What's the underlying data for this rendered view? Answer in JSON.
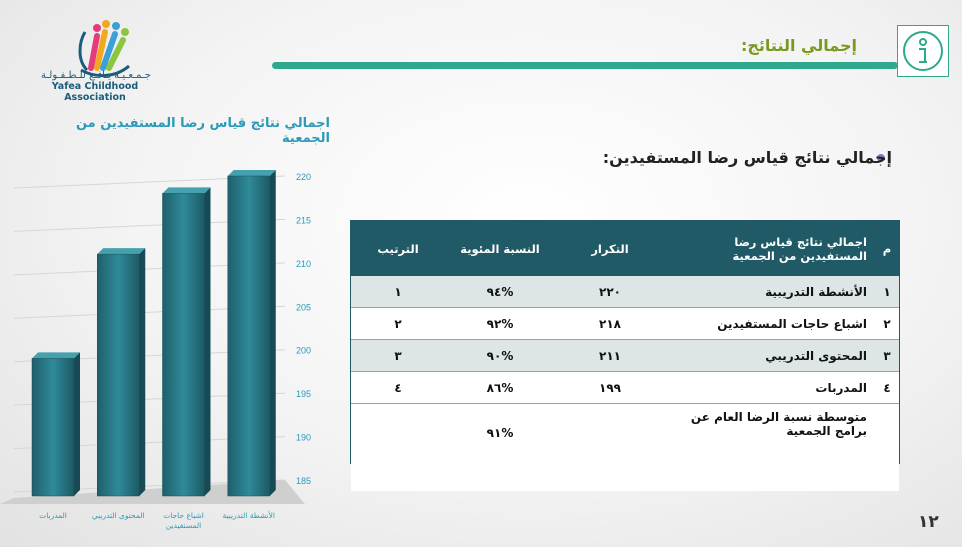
{
  "header": {
    "title": "إجمالي النتائج:",
    "logo_arabic": "جـمـعـيـة يـافـع للـطـفـولـة",
    "logo_english": "Yafea Childhood Association",
    "info_icon": "info-icon",
    "accent_color": "#2ea98c"
  },
  "section": {
    "bullet_text": "إجمالي نتائج قياس رضا المستفيدين:"
  },
  "table": {
    "headers": {
      "index": "م",
      "name": "اجمالي نتائج قياس رضا المستفيدين من الجمعية",
      "count": "التكرار",
      "percent": "النسبة المئوية",
      "rank": "الترتيب"
    },
    "rows": [
      {
        "index": "١",
        "name": "الأنشطة التدريبية",
        "count": "٢٢٠",
        "percent": "%٩٤",
        "rank": "١"
      },
      {
        "index": "٢",
        "name": "اشباع حاجات المستفيدين",
        "count": "٢١٨",
        "percent": "%٩٢",
        "rank": "٢"
      },
      {
        "index": "٣",
        "name": "المحتوى التدريبي",
        "count": "٢١١",
        "percent": "%٩٠",
        "rank": "٣"
      },
      {
        "index": "٤",
        "name": "المدربات",
        "count": "١٩٩",
        "percent": "%٨٦",
        "rank": "٤"
      }
    ],
    "summary": {
      "label": "متوسطة نسبة الرضا العام عن برامج الجمعية",
      "percent": "%٩١"
    }
  },
  "chart_data": {
    "type": "bar",
    "title": "اجمالي نتائج قياس رضا المستفيدين من الجمعية",
    "categories": [
      "المدربات",
      "المحتوى التدريبي",
      "اشباع حاجات المستفيدين",
      "الأنشطة التدريبية"
    ],
    "values": [
      199,
      211,
      218,
      220
    ],
    "ylim": [
      185,
      220
    ],
    "yticks": [
      185,
      190,
      195,
      200,
      205,
      210,
      215,
      220
    ],
    "xlabel": "",
    "ylabel": "",
    "bar_color": "#2a7f8e",
    "style": "3d"
  },
  "page_number": "١٢"
}
